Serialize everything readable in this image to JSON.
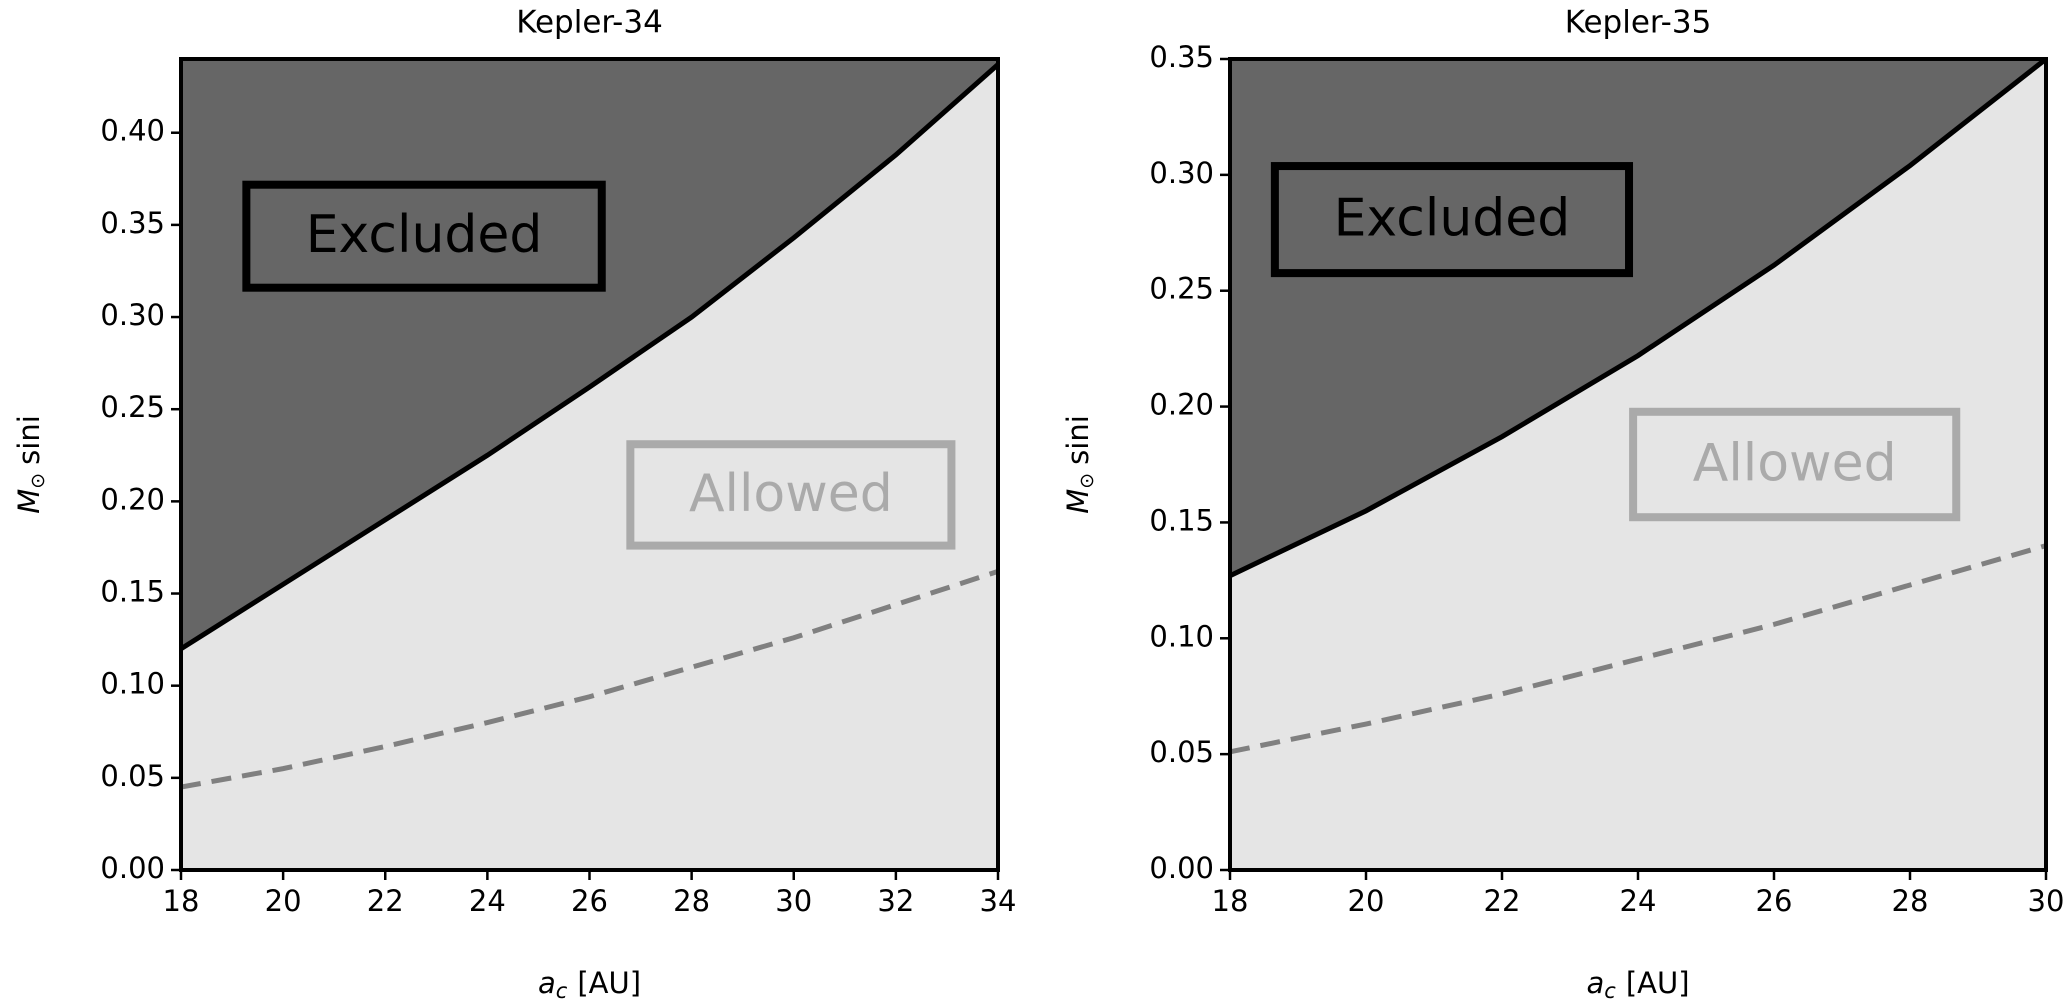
{
  "chart_data": [
    {
      "type": "line",
      "title": "Kepler-34",
      "xlabel": {
        "symbol": "a",
        "subscript": "c",
        "text": "[AU]"
      },
      "ylabel": {
        "symbol": "M",
        "subscript": "⊙",
        "text": "sini"
      },
      "x": [
        18,
        20,
        22,
        24,
        26,
        28,
        30,
        32,
        34
      ],
      "series": [
        {
          "color": "#000000",
          "style": "solid",
          "values": [
            0.12,
            0.155,
            0.19,
            0.225,
            0.262,
            0.3,
            0.343,
            0.388,
            0.437
          ]
        },
        {
          "color": "#808080",
          "style": "dashed",
          "values": [
            0.045,
            0.055,
            0.067,
            0.08,
            0.094,
            0.11,
            0.126,
            0.144,
            0.162
          ]
        }
      ],
      "fill_above": "#666666",
      "fill_below": "#e5e5e5",
      "annotations": [
        {
          "text": "Excluded",
          "color": "#000000"
        },
        {
          "text": "Allowed",
          "color": "#aaaaaa"
        }
      ],
      "xlim": [
        18,
        34
      ],
      "xticks": [
        18,
        20,
        22,
        24,
        26,
        28,
        30,
        32,
        34
      ],
      "ylim": [
        0,
        0.44
      ],
      "yticks": [
        {
          "value": 0,
          "label": "0.00"
        },
        {
          "value": 0.05,
          "label": "0.05"
        },
        {
          "value": 0.1,
          "label": "0.10"
        },
        {
          "value": 0.15,
          "label": "0.15"
        },
        {
          "value": 0.2,
          "label": "0.20"
        },
        {
          "value": 0.25,
          "label": "0.25"
        },
        {
          "value": 0.3,
          "label": "0.30"
        },
        {
          "value": 0.35,
          "label": "0.35"
        },
        {
          "value": 0.4,
          "label": "0.40"
        }
      ]
    },
    {
      "type": "line",
      "title": "Kepler-35",
      "xlabel": {
        "symbol": "a",
        "subscript": "c",
        "text": "[AU]"
      },
      "ylabel": {
        "symbol": "M",
        "subscript": "⊙",
        "text": "sini"
      },
      "x": [
        18,
        20,
        22,
        24,
        26,
        28,
        30
      ],
      "series": [
        {
          "color": "#000000",
          "style": "solid",
          "values": [
            0.127,
            0.155,
            0.187,
            0.222,
            0.261,
            0.304,
            0.35
          ]
        },
        {
          "color": "#808080",
          "style": "dashed",
          "values": [
            0.051,
            0.063,
            0.076,
            0.091,
            0.106,
            0.123,
            0.14
          ]
        }
      ],
      "fill_above": "#666666",
      "fill_below": "#e5e5e5",
      "annotations": [
        {
          "text": "Excluded",
          "color": "#000000"
        },
        {
          "text": "Allowed",
          "color": "#aaaaaa"
        }
      ],
      "xlim": [
        18,
        30
      ],
      "xticks": [
        18,
        20,
        22,
        24,
        26,
        28,
        30
      ],
      "ylim": [
        0,
        0.35
      ],
      "yticks": [
        {
          "value": 0,
          "label": "0.00"
        },
        {
          "value": 0.05,
          "label": "0.05"
        },
        {
          "value": 0.1,
          "label": "0.10"
        },
        {
          "value": 0.15,
          "label": "0.15"
        },
        {
          "value": 0.2,
          "label": "0.20"
        },
        {
          "value": 0.25,
          "label": "0.25"
        },
        {
          "value": 0.3,
          "label": "0.30"
        },
        {
          "value": 0.35,
          "label": "0.35"
        }
      ]
    }
  ]
}
